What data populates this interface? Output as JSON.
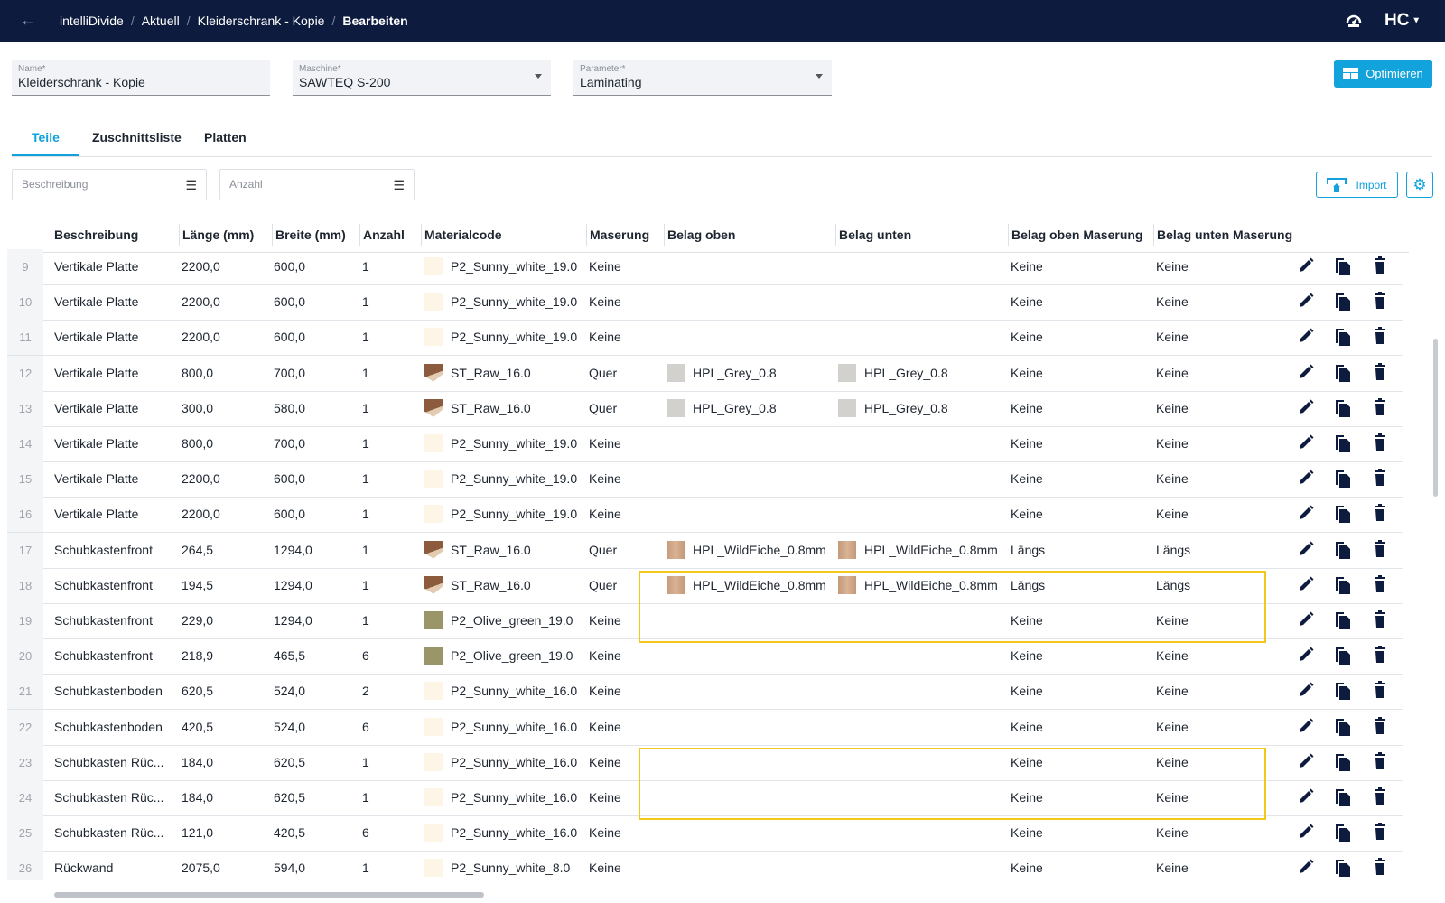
{
  "topbar": {
    "breadcrumbs": [
      "intelliDivide",
      "Aktuell",
      "Kleiderschrank - Kopie"
    ],
    "current": "Bearbeiten"
  },
  "form": {
    "name": {
      "label": "Name*",
      "value": "Kleiderschrank - Kopie"
    },
    "machine": {
      "label": "Maschine*",
      "value": "SAWTEQ S-200"
    },
    "parameter": {
      "label": "Parameter*",
      "value": "Laminating"
    },
    "optimize_label": "Optimieren"
  },
  "tabs": [
    {
      "label": "Teile"
    },
    {
      "label": "Zuschnittsliste"
    },
    {
      "label": "Platten"
    }
  ],
  "filters": {
    "beschreibung": "Beschreibung",
    "anzahl": "Anzahl"
  },
  "import_label": "Import",
  "columns": [
    "Beschreibung",
    "Länge (mm)",
    "Breite (mm)",
    "Anzahl",
    "Materialcode",
    "Maserung",
    "Belag oben",
    "Belag unten",
    "Belag oben Maserung",
    "Belag unten Maserung"
  ],
  "rows": [
    {
      "n": "9",
      "desc": "Vertikale Platte",
      "l": "2200,0",
      "b": "600,0",
      "a": "1",
      "mat": "P2_Sunny_white_19.0",
      "ms": "white",
      "mas": "Keine",
      "bo": "",
      "bos": "",
      "bu": "",
      "bus": "",
      "bom": "Keine",
      "bum": "Keine"
    },
    {
      "n": "10",
      "desc": "Vertikale Platte",
      "l": "2200,0",
      "b": "600,0",
      "a": "1",
      "mat": "P2_Sunny_white_19.0",
      "ms": "white",
      "mas": "Keine",
      "bo": "",
      "bos": "",
      "bu": "",
      "bus": "",
      "bom": "Keine",
      "bum": "Keine"
    },
    {
      "n": "11",
      "desc": "Vertikale Platte",
      "l": "2200,0",
      "b": "600,0",
      "a": "1",
      "mat": "P2_Sunny_white_19.0",
      "ms": "white",
      "mas": "Keine",
      "bo": "",
      "bos": "",
      "bu": "",
      "bus": "",
      "bom": "Keine",
      "bum": "Keine"
    },
    {
      "n": "12",
      "desc": "Vertikale Platte",
      "l": "800,0",
      "b": "700,0",
      "a": "1",
      "mat": "ST_Raw_16.0",
      "ms": "raw",
      "mas": "Quer",
      "bo": "HPL_Grey_0.8",
      "bos": "grey",
      "bu": "HPL_Grey_0.8",
      "bus": "grey",
      "bom": "Keine",
      "bum": "Keine"
    },
    {
      "n": "13",
      "desc": "Vertikale Platte",
      "l": "300,0",
      "b": "580,0",
      "a": "1",
      "mat": "ST_Raw_16.0",
      "ms": "raw",
      "mas": "Quer",
      "bo": "HPL_Grey_0.8",
      "bos": "grey",
      "bu": "HPL_Grey_0.8",
      "bus": "grey",
      "bom": "Keine",
      "bum": "Keine"
    },
    {
      "n": "14",
      "desc": "Vertikale Platte",
      "l": "800,0",
      "b": "700,0",
      "a": "1",
      "mat": "P2_Sunny_white_19.0",
      "ms": "white",
      "mas": "Keine",
      "bo": "",
      "bos": "",
      "bu": "",
      "bus": "",
      "bom": "Keine",
      "bum": "Keine"
    },
    {
      "n": "15",
      "desc": "Vertikale Platte",
      "l": "2200,0",
      "b": "600,0",
      "a": "1",
      "mat": "P2_Sunny_white_19.0",
      "ms": "white",
      "mas": "Keine",
      "bo": "",
      "bos": "",
      "bu": "",
      "bus": "",
      "bom": "Keine",
      "bum": "Keine"
    },
    {
      "n": "16",
      "desc": "Vertikale Platte",
      "l": "2200,0",
      "b": "600,0",
      "a": "1",
      "mat": "P2_Sunny_white_19.0",
      "ms": "white",
      "mas": "Keine",
      "bo": "",
      "bos": "",
      "bu": "",
      "bus": "",
      "bom": "Keine",
      "bum": "Keine"
    },
    {
      "n": "17",
      "desc": "Schubkastenfront",
      "l": "264,5",
      "b": "1294,0",
      "a": "1",
      "mat": "ST_Raw_16.0",
      "ms": "raw",
      "mas": "Quer",
      "bo": "HPL_WildEiche_0.8mm",
      "bos": "oak",
      "bu": "HPL_WildEiche_0.8mm",
      "bus": "oak",
      "bom": "Längs",
      "bum": "Längs"
    },
    {
      "n": "18",
      "desc": "Schubkastenfront",
      "l": "194,5",
      "b": "1294,0",
      "a": "1",
      "mat": "ST_Raw_16.0",
      "ms": "raw",
      "mas": "Quer",
      "bo": "HPL_WildEiche_0.8mm",
      "bos": "oak",
      "bu": "HPL_WildEiche_0.8mm",
      "bus": "oak",
      "bom": "Längs",
      "bum": "Längs"
    },
    {
      "n": "19",
      "desc": "Schubkastenfront",
      "l": "229,0",
      "b": "1294,0",
      "a": "1",
      "mat": "P2_Olive_green_19.0",
      "ms": "olive",
      "mas": "Keine",
      "bo": "",
      "bos": "",
      "bu": "",
      "bus": "",
      "bom": "Keine",
      "bum": "Keine"
    },
    {
      "n": "20",
      "desc": "Schubkastenfront",
      "l": "218,9",
      "b": "465,5",
      "a": "6",
      "mat": "P2_Olive_green_19.0",
      "ms": "olive",
      "mas": "Keine",
      "bo": "",
      "bos": "",
      "bu": "",
      "bus": "",
      "bom": "Keine",
      "bum": "Keine"
    },
    {
      "n": "21",
      "desc": "Schubkastenboden",
      "l": "620,5",
      "b": "524,0",
      "a": "2",
      "mat": "P2_Sunny_white_16.0",
      "ms": "white",
      "mas": "Keine",
      "bo": "",
      "bos": "",
      "bu": "",
      "bus": "",
      "bom": "Keine",
      "bum": "Keine"
    },
    {
      "n": "22",
      "desc": "Schubkastenboden",
      "l": "420,5",
      "b": "524,0",
      "a": "6",
      "mat": "P2_Sunny_white_16.0",
      "ms": "white",
      "mas": "Keine",
      "bo": "",
      "bos": "",
      "bu": "",
      "bus": "",
      "bom": "Keine",
      "bum": "Keine"
    },
    {
      "n": "23",
      "desc": "Schubkasten Rüc...",
      "l": "184,0",
      "b": "620,5",
      "a": "1",
      "mat": "P2_Sunny_white_16.0",
      "ms": "white",
      "mas": "Keine",
      "bo": "",
      "bos": "",
      "bu": "",
      "bus": "",
      "bom": "Keine",
      "bum": "Keine"
    },
    {
      "n": "24",
      "desc": "Schubkasten Rüc...",
      "l": "184,0",
      "b": "620,5",
      "a": "1",
      "mat": "P2_Sunny_white_16.0",
      "ms": "white",
      "mas": "Keine",
      "bo": "",
      "bos": "",
      "bu": "",
      "bus": "",
      "bom": "Keine",
      "bum": "Keine"
    },
    {
      "n": "25",
      "desc": "Schubkasten Rüc...",
      "l": "121,0",
      "b": "420,5",
      "a": "6",
      "mat": "P2_Sunny_white_16.0",
      "ms": "white",
      "mas": "Keine",
      "bo": "",
      "bos": "",
      "bu": "",
      "bus": "",
      "bom": "Keine",
      "bum": "Keine"
    },
    {
      "n": "26",
      "desc": "Rückwand",
      "l": "2075,0",
      "b": "594,0",
      "a": "1",
      "mat": "P2_Sunny_white_8.0",
      "ms": "white",
      "mas": "Keine",
      "bo": "",
      "bos": "",
      "bu": "",
      "bus": "",
      "bom": "Keine",
      "bum": "Keine"
    }
  ],
  "highlight_color": "#f2c91a",
  "accent": "#12a2dc"
}
